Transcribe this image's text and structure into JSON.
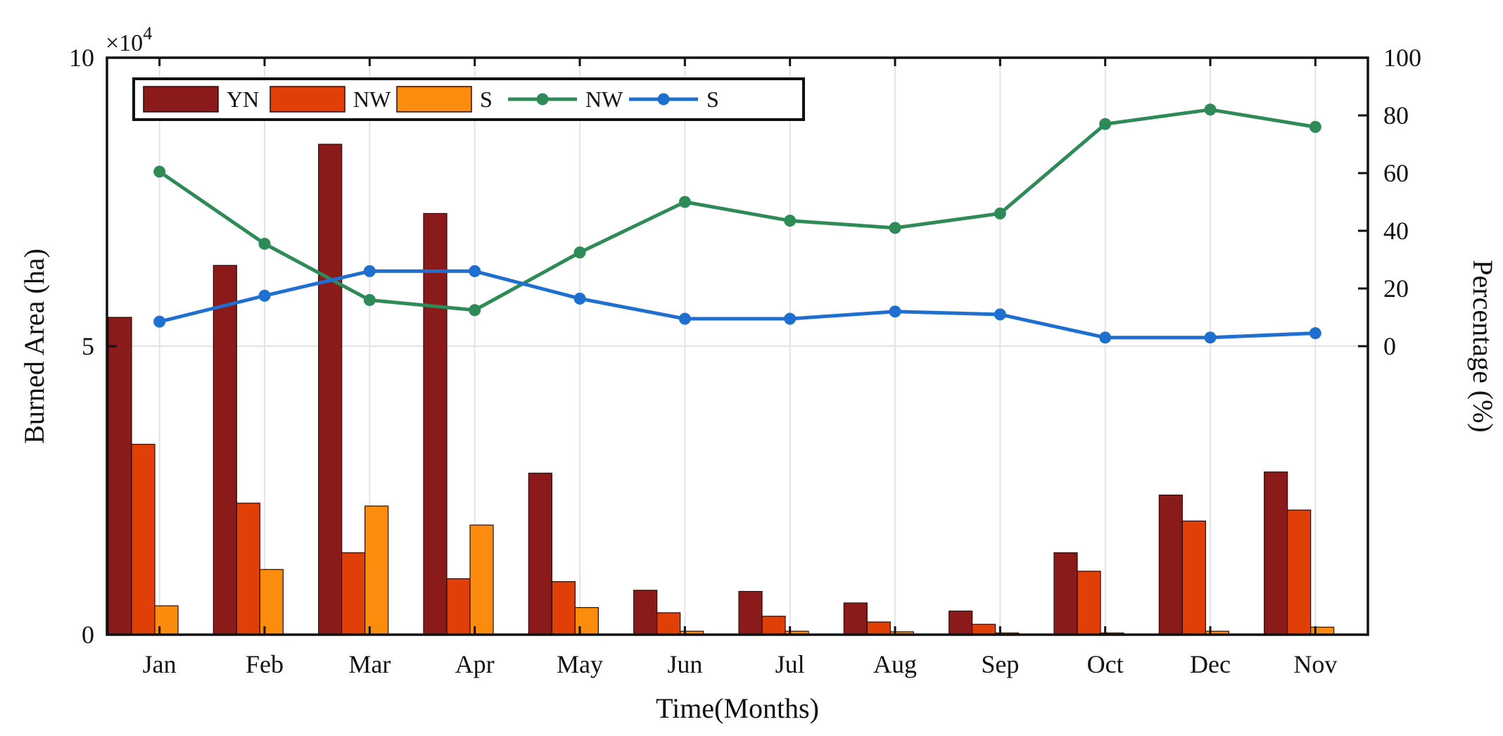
{
  "chart_data": {
    "type": "bar+line",
    "categories": [
      "Jan",
      "Feb",
      "Mar",
      "Apr",
      "May",
      "Jun",
      "Jul",
      "Aug",
      "Sep",
      "Oct",
      "Dec",
      "Nov"
    ],
    "bar_series": [
      {
        "name": "YN",
        "color": "#8B1A1A",
        "values": [
          55000,
          64000,
          85000,
          73000,
          28000,
          7700,
          7500,
          5500,
          4100,
          14200,
          24200,
          28200
        ]
      },
      {
        "name": "NW",
        "color": "#E04008",
        "values": [
          33000,
          22800,
          14200,
          9700,
          9200,
          3800,
          3200,
          2200,
          1800,
          11000,
          19700,
          21600
        ]
      },
      {
        "name": "S",
        "color": "#FB8C0E",
        "values": [
          5000,
          11300,
          22300,
          19000,
          4700,
          600,
          600,
          500,
          300,
          300,
          600,
          1300
        ]
      }
    ],
    "line_series": [
      {
        "name": "NW",
        "color": "#2E8B57",
        "values": [
          60.5,
          35.5,
          16.0,
          12.5,
          32.5,
          50.0,
          43.5,
          41.0,
          46.0,
          77.0,
          82.0,
          76.0
        ]
      },
      {
        "name": "S",
        "color": "#1E6FD0",
        "values": [
          8.5,
          17.5,
          26.0,
          26.0,
          16.5,
          9.5,
          9.5,
          12.0,
          11.0,
          3.0,
          3.0,
          4.5
        ]
      }
    ],
    "title": "",
    "xlabel": "Time(Months)",
    "ylabel_left": "Burned Area (ha)",
    "ylabel_right": "Percentage (%)",
    "ylim_left": [
      0,
      100000
    ],
    "yticks_left": [
      0,
      5,
      10
    ],
    "left_multiplier": "×10",
    "left_multiplier_exp": "4",
    "ylim_right": [
      -100,
      100
    ],
    "yticks_right": [
      "0",
      "20",
      "40",
      "60",
      "80",
      "100"
    ],
    "legend": [
      "YN",
      "NW",
      "S",
      "NW",
      "S"
    ],
    "legend_position": "top-left",
    "grid": "vertical"
  }
}
